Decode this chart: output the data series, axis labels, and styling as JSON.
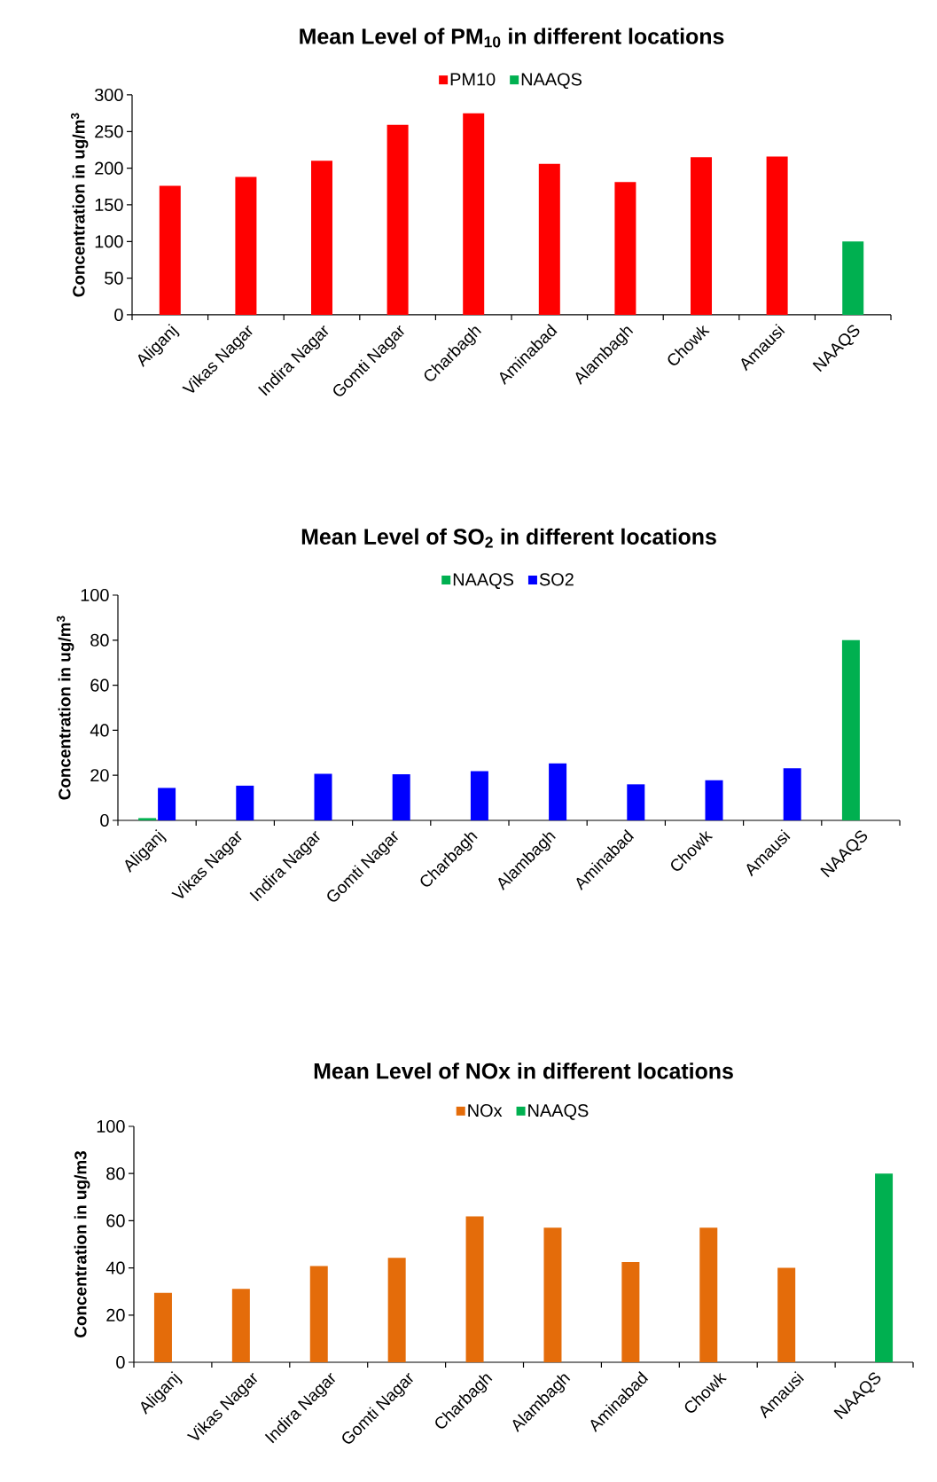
{
  "chart_data": [
    {
      "type": "bar",
      "title": "Mean Level of PM$_{10}$  in different locations",
      "ylabel": "Concentration in ug/m$^{3}$",
      "categories": [
        "Aliganj",
        "Vikas Nagar",
        "Indira Nagar",
        "Gomti Nagar",
        "Charbagh",
        "Aminabad",
        "Alambagh",
        "Chowk",
        "Amausi",
        "NAAQS"
      ],
      "legend": "top",
      "ylim": [
        0,
        300
      ],
      "yticks": [
        0,
        50,
        100,
        150,
        200,
        250,
        300
      ],
      "series": [
        {
          "name": "PM10",
          "color": "#ff0000",
          "values": [
            176,
            188,
            210,
            259,
            275,
            206,
            181,
            215,
            216,
            null
          ]
        },
        {
          "name": "NAAQS",
          "color": "#00b050",
          "values": [
            null,
            null,
            null,
            null,
            null,
            null,
            null,
            null,
            null,
            100
          ]
        }
      ]
    },
    {
      "type": "bar",
      "title": "Mean Level of  SO$_{2}$  in different locations",
      "ylabel": "Concentration in ug/m$^{3}$",
      "categories": [
        "Aliganj",
        "Vikas Nagar",
        "Indira Nagar",
        "Gomti Nagar",
        "Charbagh",
        "Alambagh",
        "Aminabad",
        "Chowk",
        "Amausi",
        "NAAQS"
      ],
      "legend": "top",
      "ylim": [
        0,
        100
      ],
      "yticks": [
        0,
        20,
        40,
        60,
        80,
        100
      ],
      "series": [
        {
          "name": "NAAQS",
          "color": "#00b050",
          "values": [
            1,
            null,
            null,
            null,
            null,
            null,
            null,
            null,
            null,
            80
          ]
        },
        {
          "name": "SO2",
          "color": "#0000ff",
          "values": [
            14.4,
            15.4,
            20.7,
            20.5,
            21.8,
            25.3,
            16,
            17.8,
            23.1,
            null
          ]
        }
      ]
    },
    {
      "type": "bar",
      "title": "Mean Level of NOx in different locations",
      "ylabel": "Concentration in ug/m3",
      "categories": [
        "Aliganj",
        "Vikas Nagar",
        "Indira Nagar",
        "Gomti Nagar",
        "Charbagh",
        "Alambagh",
        "Aminabad",
        "Chowk",
        "Amausi",
        "NAAQS"
      ],
      "legend": "top",
      "ylim": [
        0,
        100
      ],
      "yticks": [
        0,
        20,
        40,
        60,
        80,
        100
      ],
      "series": [
        {
          "name": "NOx",
          "color": "#e46c0a",
          "values": [
            29.4,
            31.1,
            40.8,
            44.3,
            61.8,
            57,
            42.5,
            57,
            40,
            null
          ]
        },
        {
          "name": "NAAQS",
          "color": "#00b050",
          "values": [
            null,
            null,
            null,
            null,
            null,
            null,
            null,
            null,
            null,
            80
          ]
        }
      ]
    }
  ]
}
